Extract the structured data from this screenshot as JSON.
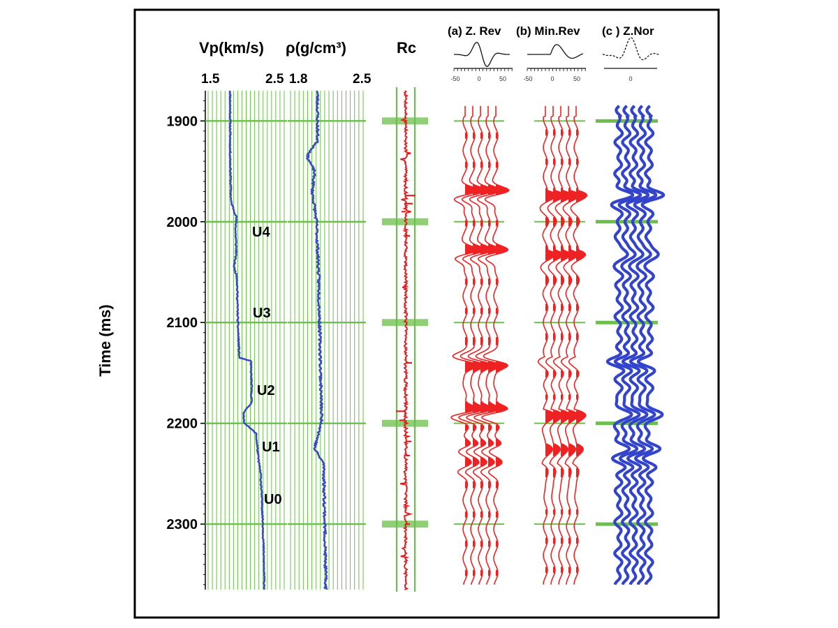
{
  "chart_data": {
    "type": "line",
    "title": "",
    "ylabel": "Time (ms)",
    "ylim": [
      1870,
      2365
    ],
    "y_ticks": [
      "1900",
      "2000",
      "2100",
      "2200",
      "2300"
    ],
    "y_tick_values": [
      1900,
      2000,
      2100,
      2200,
      2300
    ],
    "markers": [
      1900,
      2000,
      2100,
      2200,
      2300
    ],
    "units": [
      {
        "label": "U4",
        "time": 2010
      },
      {
        "label": "U3",
        "time": 2090
      },
      {
        "label": "U2",
        "time": 2167
      },
      {
        "label": "U1",
        "time": 2223
      },
      {
        "label": "U0",
        "time": 2275
      }
    ],
    "vp": {
      "label": "Vp(km/s)",
      "tick_labels": [
        "1.5",
        "2.5"
      ],
      "xlim": [
        1.5,
        2.5
      ],
      "color": "#3a4bbf",
      "profile": [
        [
          1870,
          1.79
        ],
        [
          1930,
          1.79
        ],
        [
          1980,
          1.8
        ],
        [
          1995,
          1.87
        ],
        [
          2010,
          1.86
        ],
        [
          2030,
          1.87
        ],
        [
          2045,
          1.84
        ],
        [
          2055,
          1.88
        ],
        [
          2100,
          1.89
        ],
        [
          2135,
          1.91
        ],
        [
          2138,
          2.06
        ],
        [
          2160,
          2.07
        ],
        [
          2180,
          2.07
        ],
        [
          2190,
          1.96
        ],
        [
          2200,
          1.98
        ],
        [
          2210,
          2.13
        ],
        [
          2235,
          2.16
        ],
        [
          2250,
          2.19
        ],
        [
          2300,
          2.22
        ],
        [
          2365,
          2.24
        ]
      ]
    },
    "rho": {
      "label": "ρ(g/cm³)",
      "tick_labels": [
        "1.8",
        "2.5"
      ],
      "xlim": [
        1.8,
        2.5
      ],
      "color": "#3a4bbf",
      "profile": [
        [
          1870,
          2.06
        ],
        [
          1920,
          2.06
        ],
        [
          1935,
          1.96
        ],
        [
          1950,
          2.03
        ],
        [
          1970,
          2.01
        ],
        [
          2000,
          2.05
        ],
        [
          2050,
          2.07
        ],
        [
          2100,
          2.08
        ],
        [
          2150,
          2.09
        ],
        [
          2200,
          2.1
        ],
        [
          2225,
          2.03
        ],
        [
          2240,
          2.12
        ],
        [
          2300,
          2.13
        ],
        [
          2365,
          2.14
        ]
      ]
    },
    "rc": {
      "label": "Rc",
      "color": "#e02020"
    },
    "wavelets": [
      {
        "name": "(a) Z. Rev",
        "color": "#ee2222",
        "ticks": [
          "-50",
          "0",
          "50"
        ]
      },
      {
        "name": "(b) Min.Rev",
        "color": "#ee2222",
        "ticks": [
          "-50",
          "0",
          "50"
        ]
      },
      {
        "name": "(c ) Z.Nor",
        "color": "#3344cc",
        "ticks": [
          "0"
        ]
      }
    ],
    "grid": true,
    "grid_color": "#6ac04a"
  }
}
